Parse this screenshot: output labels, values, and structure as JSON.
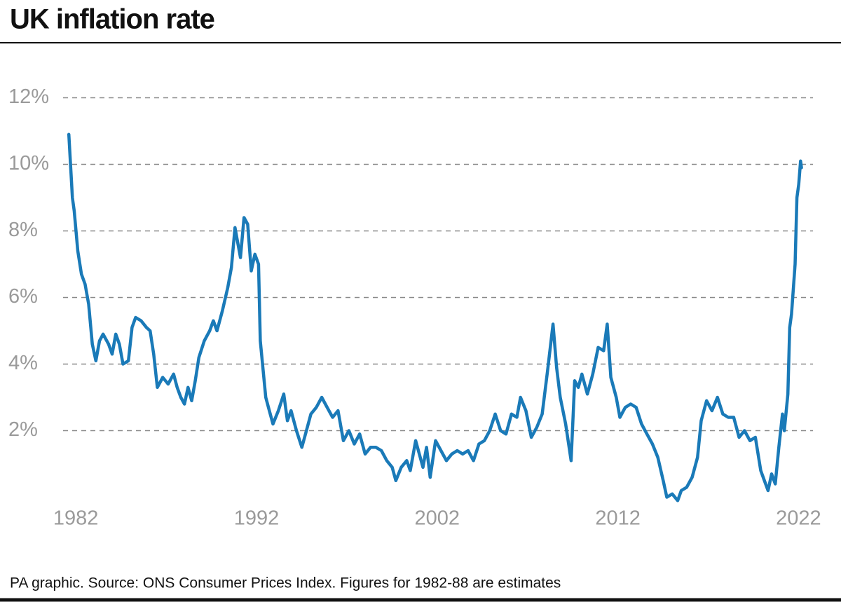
{
  "chart_data": {
    "type": "line",
    "title": "UK inflation rate",
    "source": "PA graphic. Source: ONS Consumer Prices Index. Figures for 1982-88 are estimates",
    "xlim": [
      1981.8,
      2022.8
    ],
    "xticks": [
      1982,
      1992,
      2002,
      2012,
      2022
    ],
    "ylim": [
      -0.2,
      12.6
    ],
    "yticks": [
      {
        "value": 2,
        "label": "2%"
      },
      {
        "value": 4,
        "label": "4%"
      },
      {
        "value": 6,
        "label": "6%"
      },
      {
        "value": 8,
        "label": "8%"
      },
      {
        "value": 10,
        "label": "10%"
      },
      {
        "value": 12,
        "label": "12%"
      }
    ],
    "grid": true,
    "color": "#1a7ab8",
    "x": [
      1982.0,
      1982.2,
      1982.3,
      1982.5,
      1982.7,
      1982.9,
      1983.1,
      1983.3,
      1983.5,
      1983.7,
      1983.9,
      1984.2,
      1984.4,
      1984.6,
      1984.8,
      1985.0,
      1985.3,
      1985.5,
      1985.7,
      1986.0,
      1986.3,
      1986.5,
      1986.7,
      1986.9,
      1987.2,
      1987.5,
      1987.8,
      1988.0,
      1988.2,
      1988.4,
      1988.6,
      1988.8,
      1989.0,
      1989.2,
      1989.5,
      1989.8,
      1990.0,
      1990.2,
      1990.5,
      1990.8,
      1991.0,
      1991.2,
      1991.5,
      1991.7,
      1991.9,
      1992.1,
      1992.3,
      1992.5,
      1992.6,
      1992.9,
      1993.1,
      1993.3,
      1993.6,
      1993.9,
      1994.1,
      1994.3,
      1994.6,
      1994.9,
      1995.1,
      1995.4,
      1995.7,
      1996.0,
      1996.3,
      1996.6,
      1996.9,
      1997.2,
      1997.5,
      1997.8,
      1998.1,
      1998.4,
      1998.7,
      1999.0,
      1999.3,
      1999.6,
      1999.9,
      2000.1,
      2000.4,
      2000.7,
      2000.9,
      2001.2,
      2001.4,
      2001.6,
      2001.8,
      2002.0,
      2002.3,
      2002.6,
      2002.9,
      2003.2,
      2003.5,
      2003.8,
      2004.1,
      2004.4,
      2004.7,
      2005.0,
      2005.3,
      2005.6,
      2005.9,
      2006.2,
      2006.5,
      2006.8,
      2007.0,
      2007.3,
      2007.6,
      2007.9,
      2008.2,
      2008.5,
      2008.8,
      2009.0,
      2009.2,
      2009.5,
      2009.8,
      2010.0,
      2010.2,
      2010.4,
      2010.7,
      2011.0,
      2011.3,
      2011.6,
      2011.8,
      2012.0,
      2012.3,
      2012.5,
      2012.8,
      2013.1,
      2013.4,
      2013.7,
      2014.0,
      2014.3,
      2014.6,
      2014.9,
      2015.1,
      2015.4,
      2015.7,
      2015.9,
      2016.2,
      2016.5,
      2016.8,
      2017.0,
      2017.3,
      2017.6,
      2017.9,
      2018.2,
      2018.5,
      2018.8,
      2019.1,
      2019.4,
      2019.7,
      2020.0,
      2020.3,
      2020.5,
      2020.7,
      2020.9,
      2021.1,
      2021.3,
      2021.5,
      2021.6,
      2021.8,
      2021.9,
      2022.0,
      2022.2,
      2022.3,
      2022.4,
      2022.5,
      2022.55
    ],
    "values": [
      10.9,
      9.0,
      8.6,
      7.4,
      6.7,
      6.4,
      5.8,
      4.6,
      4.1,
      4.7,
      4.9,
      4.6,
      4.3,
      4.9,
      4.6,
      4.0,
      4.1,
      5.1,
      5.4,
      5.3,
      5.1,
      5.0,
      4.3,
      3.3,
      3.6,
      3.4,
      3.7,
      3.3,
      3.0,
      2.8,
      3.3,
      2.9,
      3.5,
      4.2,
      4.7,
      5.0,
      5.3,
      5.0,
      5.6,
      6.3,
      6.9,
      8.1,
      7.2,
      8.4,
      8.2,
      6.8,
      7.3,
      7.0,
      4.7,
      3.0,
      2.6,
      2.2,
      2.6,
      3.1,
      2.3,
      2.6,
      2.0,
      1.5,
      1.9,
      2.5,
      2.7,
      3.0,
      2.7,
      2.4,
      2.6,
      1.7,
      2.0,
      1.6,
      1.9,
      1.3,
      1.5,
      1.5,
      1.4,
      1.1,
      0.9,
      0.5,
      0.9,
      1.1,
      0.8,
      1.7,
      1.3,
      0.9,
      1.5,
      0.6,
      1.7,
      1.4,
      1.1,
      1.3,
      1.4,
      1.3,
      1.4,
      1.1,
      1.6,
      1.7,
      2.0,
      2.5,
      2.0,
      1.9,
      2.5,
      2.4,
      3.0,
      2.6,
      1.8,
      2.1,
      2.5,
      3.8,
      5.2,
      3.9,
      3.0,
      2.2,
      1.1,
      3.5,
      3.3,
      3.7,
      3.1,
      3.7,
      4.5,
      4.4,
      5.2,
      3.6,
      3.0,
      2.4,
      2.7,
      2.8,
      2.7,
      2.2,
      1.9,
      1.6,
      1.2,
      0.5,
      0.0,
      0.1,
      -0.1,
      0.2,
      0.3,
      0.6,
      1.2,
      2.3,
      2.9,
      2.6,
      3.0,
      2.5,
      2.4,
      2.4,
      1.8,
      2.0,
      1.7,
      1.8,
      0.8,
      0.5,
      0.2,
      0.7,
      0.4,
      1.5,
      2.5,
      2.0,
      3.1,
      5.1,
      5.5,
      7.0,
      9.0,
      9.4,
      10.1,
      9.9
    ]
  }
}
